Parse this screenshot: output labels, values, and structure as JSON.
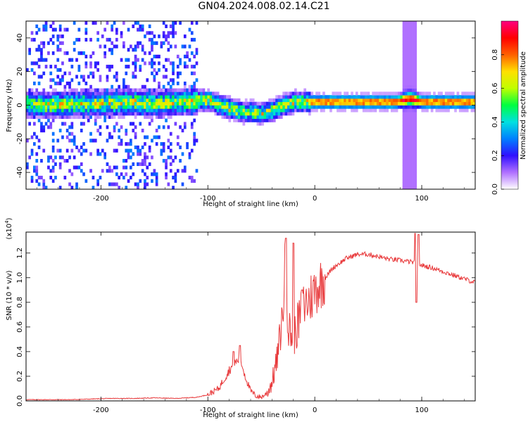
{
  "title": "GN04.2024.008.02.14.C21",
  "chart_data": [
    {
      "type": "heatmap",
      "xlabel": "Height of straight line (km)",
      "ylabel": "Frequency (Hz)",
      "xlim": [
        -270,
        150
      ],
      "ylim": [
        -50,
        50
      ],
      "x_ticks": [
        -200,
        -100,
        0,
        100
      ],
      "y_ticks": [
        -40,
        -20,
        0,
        20,
        40
      ],
      "colorbar": {
        "label": "Normalized spectral amplitude",
        "range": [
          0.0,
          1.0
        ],
        "ticks": [
          "0.0",
          "0.2",
          "0.4",
          "0.6",
          "0.8"
        ],
        "colors": [
          "#ffffff",
          "#b070ff",
          "#3010ff",
          "#0080ff",
          "#00e0e0",
          "#00ff40",
          "#c0ff00",
          "#ffe000",
          "#ff6000",
          "#ff0000",
          "#ff0080"
        ]
      },
      "ridge_center_hz": [
        [
          -270,
          0
        ],
        [
          -250,
          -1
        ],
        [
          -225,
          0
        ],
        [
          -200,
          0
        ],
        [
          -175,
          1
        ],
        [
          -150,
          0
        ],
        [
          -125,
          1
        ],
        [
          -100,
          2
        ],
        [
          -90,
          -1
        ],
        [
          -80,
          -3
        ],
        [
          -70,
          -5
        ],
        [
          -60,
          -5
        ],
        [
          -50,
          -6
        ],
        [
          -40,
          -4
        ],
        [
          -30,
          -1
        ],
        [
          -20,
          1
        ],
        [
          -10,
          1
        ],
        [
          0,
          1
        ],
        [
          25,
          1
        ],
        [
          50,
          1
        ],
        [
          75,
          1
        ],
        [
          88,
          3
        ],
        [
          100,
          1
        ],
        [
          125,
          1
        ],
        [
          150,
          1
        ]
      ]
    },
    {
      "type": "line",
      "xlabel": "Height of straight line (km)",
      "ylabel": "SNR (10 * v/v)",
      "y_scale_label": "(x10",
      "y_scale_exp": "4",
      "y_scale_close": ")",
      "xlim": [
        -270,
        150
      ],
      "ylim": [
        0,
        1.37
      ],
      "x_ticks": [
        -200,
        -100,
        0,
        100
      ],
      "y_ticks": [
        "0.0",
        "0.2",
        "0.4",
        "0.6",
        "0.8",
        "1.0",
        "1.2"
      ],
      "series": [
        {
          "color": "#e8383a",
          "points": [
            [
              -270,
              0.01
            ],
            [
              -250,
              0.01
            ],
            [
              -230,
              0.01
            ],
            [
              -210,
              0.015
            ],
            [
              -190,
              0.02
            ],
            [
              -170,
              0.02
            ],
            [
              -150,
              0.025
            ],
            [
              -130,
              0.02
            ],
            [
              -110,
              0.03
            ],
            [
              -100,
              0.05
            ],
            [
              -90,
              0.1
            ],
            [
              -80,
              0.25
            ],
            [
              -70,
              0.35
            ],
            [
              -65,
              0.2
            ],
            [
              -60,
              0.08
            ],
            [
              -55,
              0.04
            ],
            [
              -50,
              0.03
            ],
            [
              -45,
              0.06
            ],
            [
              -40,
              0.15
            ],
            [
              -35,
              0.35
            ],
            [
              -30,
              0.7
            ],
            [
              -27,
              1.25
            ],
            [
              -25,
              0.6
            ],
            [
              -20,
              0.5
            ],
            [
              -15,
              0.65
            ],
            [
              -10,
              0.78
            ],
            [
              -5,
              0.82
            ],
            [
              0,
              0.9
            ],
            [
              5,
              0.95
            ],
            [
              10,
              1.0
            ],
            [
              15,
              1.06
            ],
            [
              20,
              1.1
            ],
            [
              30,
              1.16
            ],
            [
              40,
              1.19
            ],
            [
              50,
              1.19
            ],
            [
              60,
              1.17
            ],
            [
              70,
              1.15
            ],
            [
              80,
              1.14
            ],
            [
              88,
              1.13
            ],
            [
              95,
              1.12
            ],
            [
              100,
              1.1
            ],
            [
              110,
              1.08
            ],
            [
              120,
              1.05
            ],
            [
              130,
              1.02
            ],
            [
              140,
              0.99
            ],
            [
              150,
              0.96
            ]
          ],
          "spikes": [
            [
              -76,
              0.4
            ],
            [
              -70,
              0.45
            ],
            [
              -27,
              1.32
            ],
            [
              -20,
              1.28
            ],
            [
              -12,
              0.9
            ],
            [
              94,
              1.36
            ],
            [
              95,
              0.8
            ],
            [
              97,
              1.35
            ]
          ]
        }
      ]
    }
  ]
}
